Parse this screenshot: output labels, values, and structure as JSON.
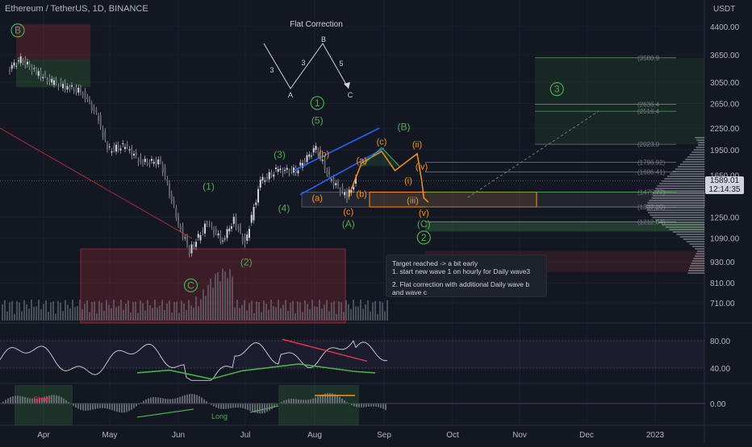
{
  "header": {
    "title": "Ethereum / TetherUS, 1D, BINANCE",
    "currency": "USDT"
  },
  "price_tag": {
    "price": "1589.01",
    "countdown": "12:14:35",
    "color": "#d1d4dc"
  },
  "note": {
    "line1": "Target reached -> a bit early",
    "line2": "1. start new wave 1 on hourly for Daily wave3",
    "line3": "2. Flat correction with additional Daily wave b and wave c"
  },
  "colors": {
    "background": "#131722",
    "grid": "#1e222d",
    "text": "#b2b5be",
    "wave_green": "#4caf50",
    "wave_orange": "#f7931a",
    "channel_blue": "#2962ff",
    "rsi_line": "#d1d4dc"
  },
  "chart_data": [
    {
      "type": "line",
      "title": "",
      "x": [
        "Apr",
        "May",
        "Jun",
        "Jul",
        "Aug",
        "Sep",
        "Oct",
        "Nov",
        "Dec",
        "2023"
      ],
      "y_ticks": [
        4400,
        3650,
        3050,
        2650,
        2250,
        1950,
        1650,
        1250,
        1090,
        930,
        810,
        710
      ],
      "y_tick_labels": [
        "4400.00",
        "3650.00",
        "3050.00",
        "2650.00",
        "2250.00",
        "1950.00",
        "1650.00",
        "1250.00",
        "1090.00",
        "930.00",
        "810.00",
        "710.00"
      ],
      "price_path": [
        {
          "t": "Mar 28",
          "v": 3300
        },
        {
          "t": "Apr 3",
          "v": 3550
        },
        {
          "t": "Apr 10",
          "v": 3250
        },
        {
          "t": "Apr 17",
          "v": 3050
        },
        {
          "t": "Apr 24",
          "v": 2950
        },
        {
          "t": "May 1",
          "v": 2850
        },
        {
          "t": "May 8",
          "v": 2400
        },
        {
          "t": "May 12",
          "v": 1950
        },
        {
          "t": "May 20",
          "v": 2000
        },
        {
          "t": "May 27",
          "v": 1800
        },
        {
          "t": "Jun 5",
          "v": 1800
        },
        {
          "t": "Jun 13",
          "v": 1200
        },
        {
          "t": "Jun 18",
          "v": 1000
        },
        {
          "t": "Jun 26",
          "v": 1200
        },
        {
          "t": "Jul 3",
          "v": 1070
        },
        {
          "t": "Jul 8",
          "v": 1230
        },
        {
          "t": "Jul 13",
          "v": 1050
        },
        {
          "t": "Jul 20",
          "v": 1580
        },
        {
          "t": "Jul 27",
          "v": 1700
        },
        {
          "t": "Aug 5",
          "v": 1700
        },
        {
          "t": "Aug 14",
          "v": 1980
        },
        {
          "t": "Aug 20",
          "v": 1620
        },
        {
          "t": "Aug 28",
          "v": 1430
        },
        {
          "t": "Sep 1",
          "v": 1589
        }
      ],
      "horizontal_levels": [
        {
          "label": "(3580.9",
          "value": 3580
        },
        {
          "label": "(2636.4",
          "value": 2636
        },
        {
          "label": "(2516.4",
          "value": 2516
        },
        {
          "label": "(2023.0",
          "value": 2023
        },
        {
          "label": "(1796.92)",
          "value": 1797
        },
        {
          "label": "(1686.41)",
          "value": 1686
        },
        {
          "label": "(1475.77)",
          "value": 1476
        },
        {
          "label": "(1337.20)",
          "value": 1337
        },
        {
          "label": "(1212.64)",
          "value": 1213
        }
      ],
      "wave_labels_green": [
        {
          "text": "B",
          "circled": true,
          "t": "Apr 1",
          "v": 4200
        },
        {
          "text": "C",
          "circled": true,
          "t": "Jun 18",
          "v": 780
        },
        {
          "text": "(1)",
          "t": "Jun 26",
          "v": 1500
        },
        {
          "text": "(2)",
          "t": "Jul 13",
          "v": 910
        },
        {
          "text": "(3)",
          "t": "Jul 28",
          "v": 1850
        },
        {
          "text": "(4)",
          "t": "Jul 30",
          "v": 1300
        },
        {
          "text": "1",
          "circled": true,
          "t": "Aug 14",
          "v": 2600
        },
        {
          "text": "(5)",
          "t": "Aug 14",
          "v": 2320
        },
        {
          "text": "(A)",
          "t": "Aug 28",
          "v": 1170
        },
        {
          "text": "(B)",
          "t": "Sep 22",
          "v": 2220
        },
        {
          "text": "(C)",
          "t": "Oct 1",
          "v": 1170
        },
        {
          "text": "2",
          "circled": true,
          "t": "Oct 1",
          "v": 1070
        },
        {
          "text": "3",
          "circled": true,
          "t": "Nov 30",
          "v": 2850
        }
      ],
      "wave_labels_orange": [
        {
          "text": "(b)",
          "t": "Aug 17",
          "v": 1860
        },
        {
          "text": "(a)",
          "t": "Aug 14",
          "v": 1390
        },
        {
          "text": "(c)",
          "t": "Aug 28",
          "v": 1270
        },
        {
          "text": "(b)",
          "t": "Sep 3",
          "v": 1430
        },
        {
          "text": "(a)",
          "t": "Sep 3",
          "v": 1780
        },
        {
          "text": "(c)",
          "t": "Sep 12",
          "v": 2020
        },
        {
          "text": "(ii)",
          "t": "Sep 28",
          "v": 1980
        },
        {
          "text": "(iv)",
          "t": "Sep 30",
          "v": 1710
        },
        {
          "text": "(i)",
          "t": "Sep 24",
          "v": 1560
        },
        {
          "text": "(iii)",
          "t": "Sep 26",
          "v": 1370
        },
        {
          "text": "(v)",
          "t": "Oct 1",
          "v": 1260
        }
      ],
      "inset_diagram": {
        "title": "Flat Correction",
        "labels": [
          "A",
          "B",
          "C",
          "3",
          "3",
          "5"
        ]
      }
    },
    {
      "type": "line",
      "title": "",
      "y_ticks": [
        80,
        40
      ],
      "y_tick_labels": [
        "80.00",
        "40.00"
      ]
    },
    {
      "type": "bar",
      "title": "",
      "y_ticks": [
        0
      ],
      "y_tick_labels": [
        "0.00"
      ],
      "annotations": [
        "Short",
        "Long"
      ]
    }
  ],
  "time_axis": {
    "labels": [
      "Apr",
      "May",
      "Jun",
      "Jul",
      "Aug",
      "Sep",
      "Oct",
      "Nov",
      "Dec",
      "2023"
    ]
  }
}
